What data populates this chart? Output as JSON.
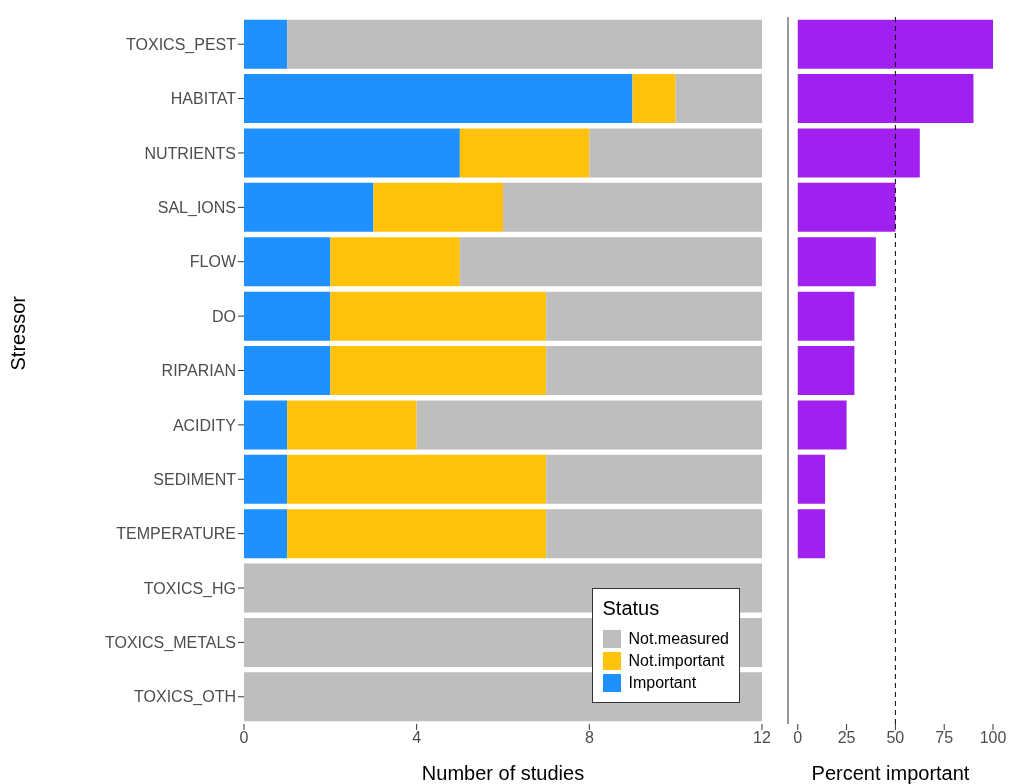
{
  "chart_data": [
    {
      "type": "bar",
      "orientation": "horizontal",
      "stacked": true,
      "ylabel": "Stressor",
      "xlabel": "Number of studies",
      "legend_title": "Status",
      "legend": "bottom right",
      "grid": false,
      "categories": [
        "TOXICS_PEST",
        "HABITAT",
        "NUTRIENTS",
        "SAL_IONS",
        "FLOW",
        "DO",
        "RIPARIAN",
        "ACIDITY",
        "SEDIMENT",
        "TEMPERATURE",
        "TOXICS_HG",
        "TOXICS_METALS",
        "TOXICS_OTH"
      ],
      "xlim": [
        0,
        12
      ],
      "xticks": [
        0,
        4,
        8,
        12
      ],
      "series": [
        {
          "name": "Important",
          "color": "#1e90ff",
          "values": [
            1,
            9,
            5,
            3,
            2,
            2,
            2,
            1,
            1,
            1,
            0,
            0,
            0
          ]
        },
        {
          "name": "Not.important",
          "color": "#ffc20a",
          "values": [
            0,
            1,
            3,
            3,
            3,
            5,
            5,
            3,
            6,
            6,
            0,
            0,
            0
          ]
        },
        {
          "name": "Not.measured",
          "color": "#bebebe",
          "values": [
            11,
            2,
            4,
            6,
            7,
            5,
            5,
            8,
            5,
            5,
            12,
            12,
            12
          ]
        }
      ]
    },
    {
      "type": "bar",
      "orientation": "horizontal",
      "xlabel": "Percent important",
      "tick_labels": "x",
      "grid": false,
      "categories": [
        null,
        null,
        null,
        null,
        null,
        null,
        null,
        null,
        null,
        null,
        null,
        null,
        null
      ],
      "xlim": [
        -5,
        100
      ],
      "xticks": [
        0,
        25,
        50,
        75,
        100
      ],
      "ref_lines": [
        {
          "axis": "x",
          "value": 50,
          "color": "#000000",
          "line_style": "dashed"
        }
      ],
      "series": [
        {
          "color": "#a020f0",
          "values": [
            100,
            90,
            62.5,
            50,
            40,
            29,
            29,
            25,
            14,
            14,
            null,
            null,
            null
          ]
        }
      ]
    }
  ]
}
